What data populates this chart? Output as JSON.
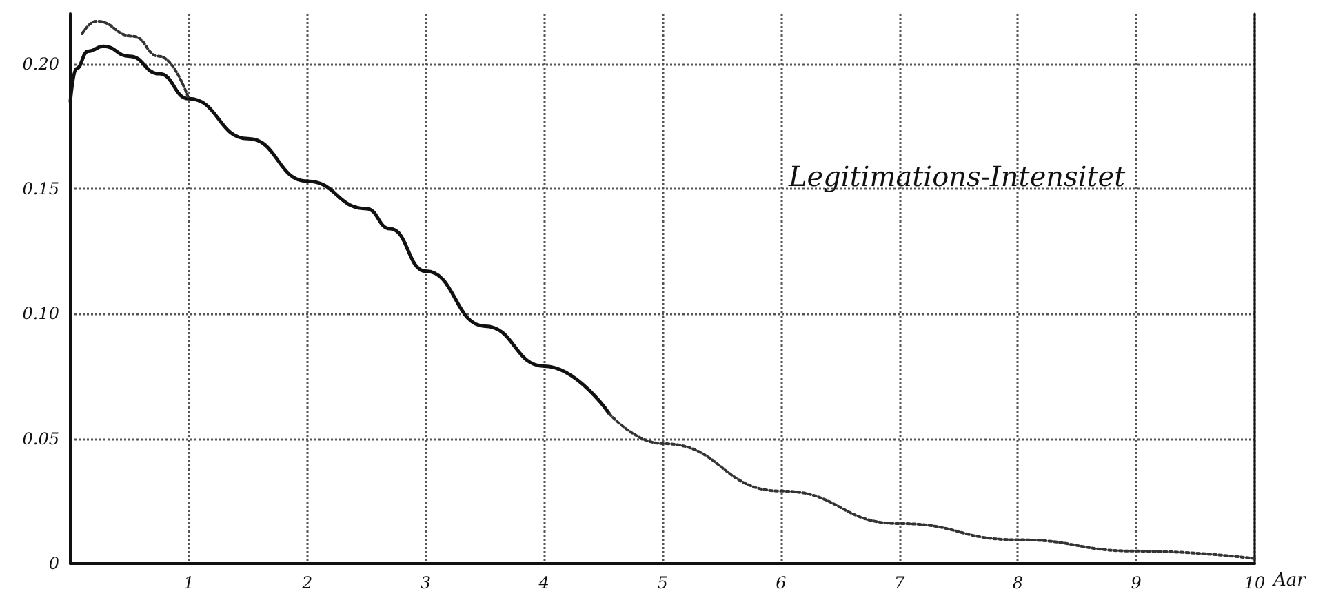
{
  "chart_data": {
    "type": "line",
    "title": "Legitimations-Intensitet",
    "xlabel": "Aar",
    "xlim": [
      0,
      10
    ],
    "xticks": [
      1,
      2,
      3,
      4,
      5,
      6,
      7,
      8,
      9,
      10
    ],
    "ylim": [
      0,
      0.22
    ],
    "yticks": [
      0,
      {
        "value": 0.05,
        "label": "0.05"
      },
      {
        "value": 0.1,
        "label": "0.10"
      },
      {
        "value": 0.15,
        "label": "0.15"
      },
      {
        "value": 0.2,
        "label": "0.20"
      }
    ],
    "grid": true,
    "marker": "none",
    "series": [
      {
        "color": "#111111",
        "line_style": "solid",
        "x": [
          0,
          0.05,
          0.15,
          0.28,
          0.5,
          0.75,
          1,
          1.5,
          2,
          2.5,
          2.7,
          3,
          3.5,
          4,
          4.55
        ],
        "values": [
          0.185,
          0.198,
          0.205,
          0.207,
          0.203,
          0.196,
          0.186,
          0.17,
          0.153,
          0.142,
          0.134,
          0.117,
          0.095,
          0.079,
          0.06
        ]
      },
      {
        "color": "#333333",
        "line_style": "dotted",
        "x": [
          0.1,
          0.22,
          0.53,
          0.75,
          1,
          2,
          4.55,
          5,
          6,
          7,
          8,
          9,
          10
        ],
        "values": [
          0.212,
          0.217,
          0.211,
          0.203,
          0.186,
          null,
          0.06,
          0.048,
          0.029,
          0.016,
          0.0095,
          0.005,
          0.002
        ]
      }
    ]
  }
}
